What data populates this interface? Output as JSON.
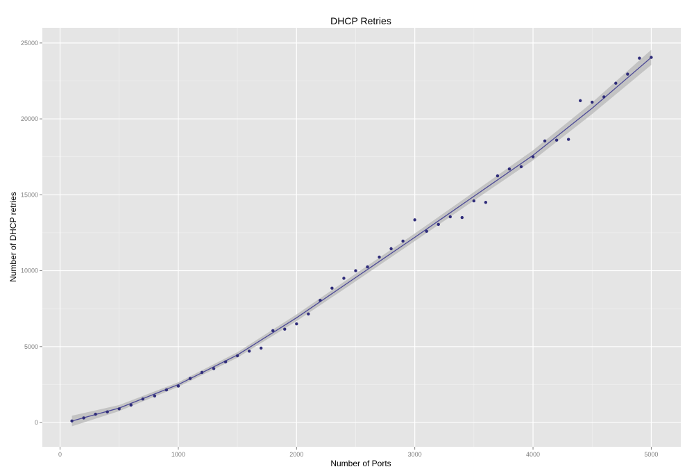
{
  "chart_data": {
    "type": "scatter",
    "title": "DHCP Retries",
    "xlabel": "Number of Ports",
    "ylabel": "Number of DHCP retries",
    "xlim": [
      -150,
      5250
    ],
    "ylim": [
      -1600,
      26000
    ],
    "x_ticks": [
      0,
      1000,
      2000,
      3000,
      4000,
      5000
    ],
    "y_ticks": [
      0,
      5000,
      10000,
      15000,
      20000,
      25000
    ],
    "grid": true,
    "background_color": "#e5e5e5",
    "grid_color": "#ffffff",
    "point_color": "#2f2c7a",
    "fit_line_color": "#4b4896",
    "confidence_band_color": "#bdbdbd",
    "series": [
      {
        "x": [
          100,
          200,
          300,
          400,
          500,
          600,
          700,
          800,
          900,
          1000,
          1100,
          1200,
          1300,
          1400,
          1500,
          1600,
          1700,
          1800,
          1900,
          2000,
          2100,
          2200,
          2300,
          2400,
          2500,
          2600,
          2700,
          2800,
          2900,
          3000,
          3100,
          3200,
          3300,
          3400,
          3500,
          3600,
          3700,
          3800,
          3900,
          4000,
          4100,
          4200,
          4300,
          4400,
          4500,
          4600,
          4700,
          4800,
          4900,
          5000
        ],
        "values": [
          100,
          300,
          550,
          700,
          900,
          1150,
          1550,
          1750,
          2150,
          2400,
          2900,
          3300,
          3550,
          4000,
          4400,
          4700,
          4900,
          6050,
          6150,
          6500,
          7150,
          8050,
          8850,
          9500,
          10000,
          10250,
          10900,
          11450,
          11950,
          13350,
          12600,
          13050,
          13550,
          13500,
          14600,
          14500,
          16250,
          16700,
          16850,
          17500,
          18550,
          18600,
          18650,
          21200,
          21100,
          21450,
          22350,
          22950,
          24000,
          24050
        ]
      }
    ],
    "fit_line": {
      "x": [
        100,
        500,
        1000,
        1500,
        2000,
        2500,
        3000,
        3500,
        4000,
        4500,
        5000
      ],
      "values": [
        100,
        950,
        2500,
        4450,
        6900,
        9550,
        12200,
        14900,
        17600,
        20700,
        24050
      ],
      "band_halfwidth": [
        350,
        200,
        150,
        180,
        220,
        250,
        250,
        280,
        330,
        380,
        500
      ]
    }
  }
}
